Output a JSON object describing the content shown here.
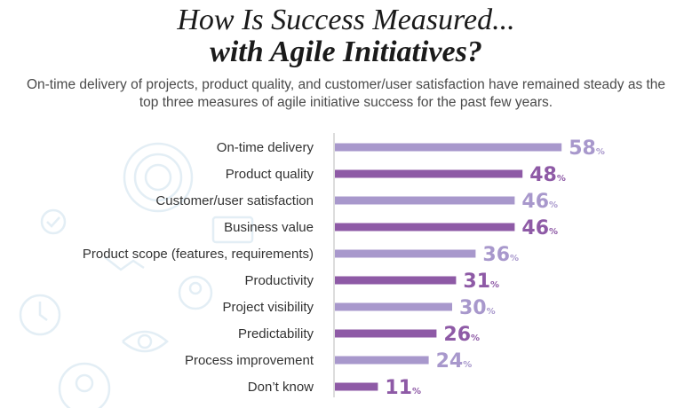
{
  "title": {
    "line1": "How Is Success Measured...",
    "line2": "with Agile Initiatives?"
  },
  "subtitle": "On-time delivery of projects, product quality, and customer/user satisfaction have remained steady as the top three measures of agile initiative success for the past few years.",
  "colors": {
    "light": "#a898cc",
    "dark": "#8e5aa6"
  },
  "chart_data": {
    "type": "bar",
    "orientation": "horizontal",
    "title": "How Is Success Measured... with Agile Initiatives?",
    "unit": "%",
    "categories": [
      "On-time delivery",
      "Product quality",
      "Customer/user satisfaction",
      "Business value",
      "Product scope (features, requirements)",
      "Productivity",
      "Project visibility",
      "Predictability",
      "Process improvement",
      "Don’t know"
    ],
    "values": [
      58,
      48,
      46,
      46,
      36,
      31,
      30,
      26,
      24,
      11
    ],
    "xlim": [
      0,
      60
    ]
  }
}
